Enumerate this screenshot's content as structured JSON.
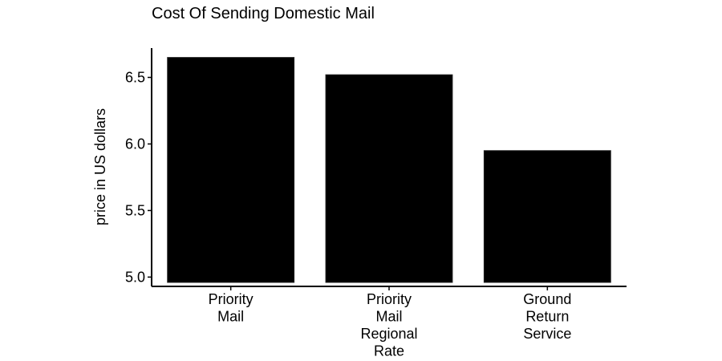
{
  "chart_data": {
    "type": "bar",
    "title": "Cost Of Sending Domestic Mail",
    "xlabel": "",
    "ylabel": "price in US dollars",
    "categories": [
      [
        "Priority",
        "Mail"
      ],
      [
        "Priority",
        "Mail",
        "Regional",
        "Rate"
      ],
      [
        "Ground",
        "Return",
        "Service"
      ]
    ],
    "values": [
      6.65,
      6.52,
      5.95
    ],
    "yticks": [
      5.0,
      5.5,
      6.0,
      6.5
    ],
    "ytick_labels": [
      "5.0",
      "5.5",
      "6.0",
      "6.5"
    ],
    "ylim": [
      4.93,
      6.72
    ],
    "bar_color": "#000000",
    "grid": false,
    "legend": "none"
  }
}
